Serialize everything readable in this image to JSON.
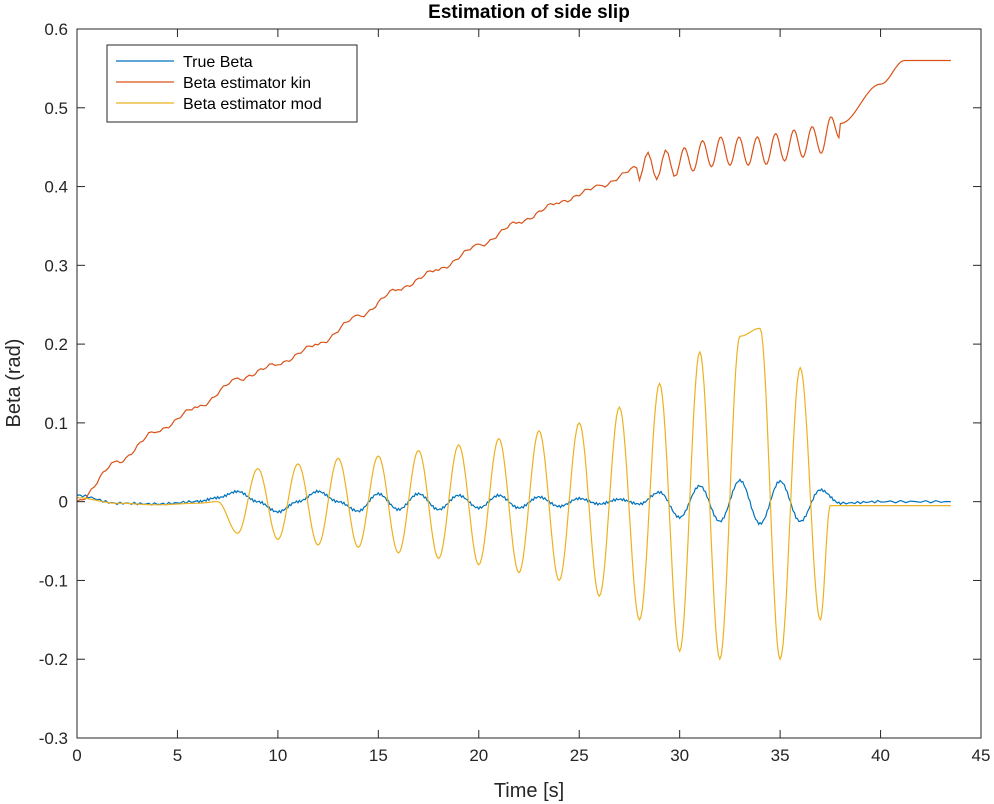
{
  "chart_data": {
    "type": "line",
    "title": "Estimation of side slip",
    "xlabel": "Time [s]",
    "ylabel": "Beta (rad)",
    "xlim": [
      0,
      45
    ],
    "ylim": [
      -0.3,
      0.6
    ],
    "xticks": [
      0,
      5,
      10,
      15,
      20,
      25,
      30,
      35,
      40,
      45
    ],
    "xtick_labels": [
      "0",
      "5",
      "10",
      "15",
      "20",
      "25",
      "30",
      "35",
      "40",
      "45"
    ],
    "yticks": [
      -0.3,
      -0.2,
      -0.1,
      0,
      0.1,
      0.2,
      0.3,
      0.4,
      0.5,
      0.6
    ],
    "ytick_labels": [
      "-0.3",
      "-0.2",
      "-0.1",
      "0",
      "0.1",
      "0.2",
      "0.3",
      "0.4",
      "0.5",
      "0.6"
    ],
    "grid": false,
    "legend_position": "top-left",
    "series": [
      {
        "name": "True Beta",
        "color": "#0072BD",
        "x": [
          0,
          2,
          4,
          6,
          7,
          8,
          9,
          10,
          11,
          12,
          13,
          14,
          15,
          16,
          17,
          18,
          19,
          20,
          21,
          22,
          23,
          24,
          25,
          26,
          27,
          28,
          29,
          30,
          31,
          32,
          33,
          34,
          35,
          36,
          37,
          38,
          40,
          43.5
        ],
        "y": [
          0.008,
          -0.002,
          -0.003,
          0,
          0.005,
          0.013,
          0,
          -0.013,
          0,
          0.013,
          0,
          -0.012,
          0.01,
          -0.01,
          0.01,
          -0.01,
          0.008,
          -0.008,
          0.008,
          -0.008,
          0.006,
          -0.006,
          0.004,
          -0.003,
          0.003,
          -0.003,
          0.012,
          -0.02,
          0.02,
          -0.025,
          0.027,
          -0.028,
          0.026,
          -0.025,
          0.015,
          -0.002,
          0,
          0
        ]
      },
      {
        "name": "Beta estimator kin",
        "color": "#D95319",
        "x": [
          0,
          2,
          4,
          6,
          8,
          10,
          12,
          14,
          16,
          18,
          20,
          22,
          24,
          26,
          28,
          30,
          31,
          32,
          33,
          34,
          35,
          36,
          37,
          38,
          40,
          41.2,
          43.5
        ],
        "y": [
          0.0,
          0.05,
          0.09,
          0.12,
          0.155,
          0.175,
          0.2,
          0.235,
          0.27,
          0.295,
          0.325,
          0.355,
          0.38,
          0.4,
          0.425,
          0.43,
          0.44,
          0.445,
          0.445,
          0.445,
          0.45,
          0.455,
          0.46,
          0.48,
          0.53,
          0.56,
          0.56
        ]
      },
      {
        "name": "Beta estimator mod",
        "color": "#EDB120",
        "x": [
          0,
          2,
          4,
          6,
          7,
          8,
          9,
          10,
          11,
          12,
          13,
          14,
          15,
          16,
          17,
          18,
          19,
          20,
          21,
          22,
          23,
          24,
          25,
          26,
          27,
          28,
          29,
          30,
          31,
          32,
          33,
          34,
          35,
          36,
          37,
          37.5,
          43.5
        ],
        "y": [
          0.005,
          -0.002,
          -0.004,
          -0.002,
          0,
          -0.04,
          0.042,
          -0.048,
          0.048,
          -0.055,
          0.055,
          -0.058,
          0.058,
          -0.065,
          0.065,
          -0.072,
          0.072,
          -0.08,
          0.08,
          -0.09,
          0.09,
          -0.1,
          0.1,
          -0.12,
          0.12,
          -0.15,
          0.15,
          -0.19,
          0.19,
          -0.2,
          0.21,
          0.22,
          -0.2,
          0.17,
          -0.15,
          -0.005,
          -0.005
        ]
      }
    ]
  }
}
